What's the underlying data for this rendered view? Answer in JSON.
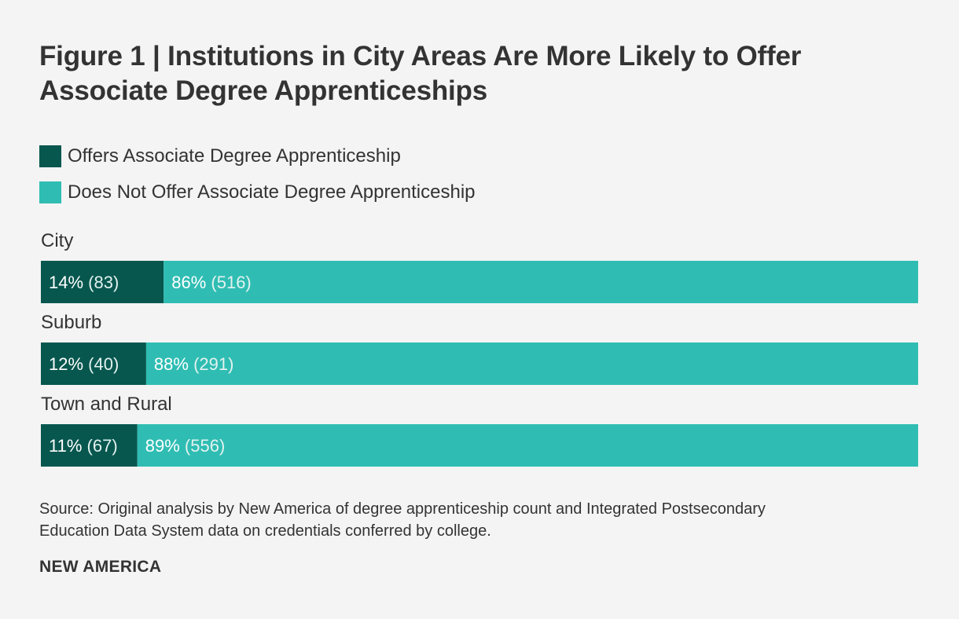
{
  "chart_data": {
    "type": "bar",
    "orientation": "horizontal",
    "stacked": true,
    "normalized_percent": true,
    "title": "Figure 1 | Institutions in City Areas Are More Likely to Offer Associate Degree Apprenticeships",
    "categories": [
      "City",
      "Suburb",
      "Town and Rural"
    ],
    "series": [
      {
        "name": "Offers Associate Degree Apprenticeship",
        "color": "#07574f",
        "values": [
          14,
          12,
          11
        ],
        "counts": [
          83,
          40,
          67
        ],
        "labels": [
          {
            "pct": "14%",
            "count": "(83)"
          },
          {
            "pct": "12%",
            "count": "(40)"
          },
          {
            "pct": "11%",
            "count": "(67)"
          }
        ]
      },
      {
        "name": "Does Not Offer Associate Degree Apprenticeship",
        "color": "#2fbdb3",
        "values": [
          86,
          88,
          89
        ],
        "counts": [
          516,
          291,
          556
        ],
        "labels": [
          {
            "pct": "86%",
            "count": "(516)"
          },
          {
            "pct": "88%",
            "count": "(291)"
          },
          {
            "pct": "89%",
            "count": "(556)"
          }
        ]
      }
    ],
    "xlim": [
      0,
      100
    ],
    "grid": false,
    "legend_position": "top-left"
  },
  "source": "Source: Original analysis by New America of degree apprenticeship count and Integrated Postsecondary Education Data System data on credentials conferred by college.",
  "brand": "NEW AMERICA"
}
